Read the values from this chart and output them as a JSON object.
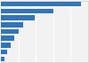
{
  "values": [
    6900,
    4500,
    2900,
    1950,
    1500,
    1170,
    820,
    550,
    340
  ],
  "bar_color": "#3375b7",
  "background_color": "#f2f2f2",
  "grid_color": "#ffffff",
  "bar_height": 0.72,
  "xlim": [
    0,
    7500
  ],
  "n_bars": 9,
  "figsize": [
    1.0,
    0.71
  ],
  "dpi": 100
}
